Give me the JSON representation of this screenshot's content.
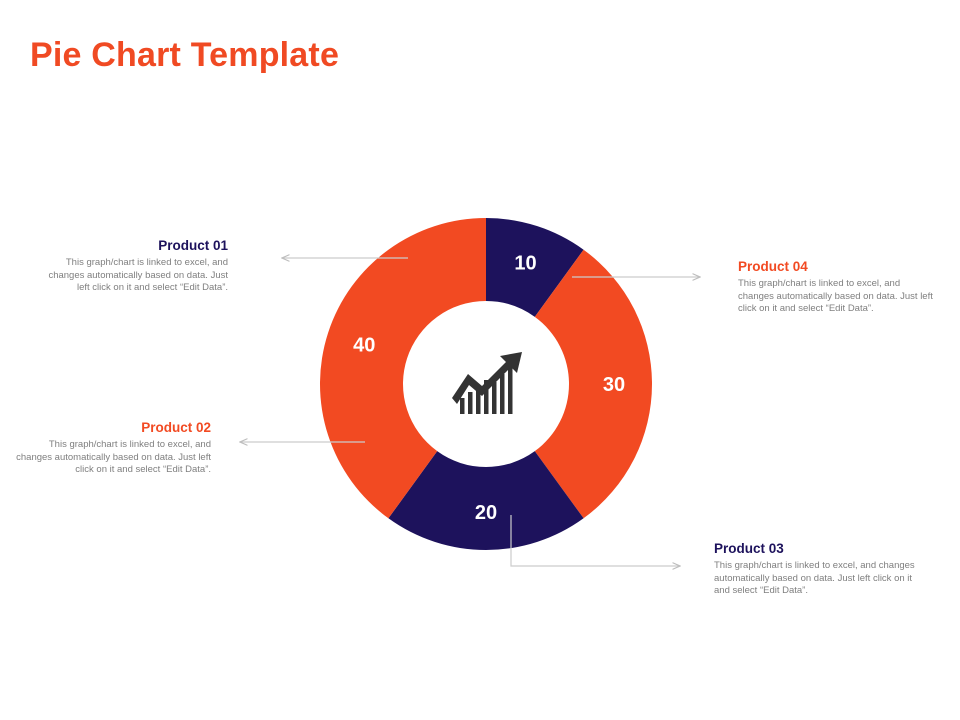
{
  "title": "Pie Chart Template",
  "colors": {
    "orange": "#f24a22",
    "navy": "#1d125c",
    "title": "#f04a23",
    "text": "#7f7f7f",
    "connector": "#cccccc"
  },
  "center_icon": "growth-chart-arrow-icon",
  "chart_data": {
    "type": "pie",
    "style": "donut",
    "title": "",
    "categories": [
      "Product 01",
      "Product 04",
      "Product 03",
      "Product 02"
    ],
    "values": [
      10,
      30,
      20,
      40
    ],
    "labels": [
      "10",
      "30",
      "20",
      "40"
    ],
    "slice_colors": [
      "#1d125c",
      "#f24a22",
      "#1d125c",
      "#f24a22"
    ]
  },
  "callouts": [
    {
      "id": "product-01",
      "heading": "Product 01",
      "heading_color": "#1d125c",
      "desc": "This graph/chart is linked to excel, and changes automatically based on data. Just left click on it and select “Edit Data”."
    },
    {
      "id": "product-02",
      "heading": "Product 02",
      "heading_color": "#f24a22",
      "desc": "This graph/chart is linked to excel, and changes automatically based on data. Just left click on it and select “Edit Data”."
    },
    {
      "id": "product-03",
      "heading": "Product 03",
      "heading_color": "#1d125c",
      "desc": "This graph/chart is linked to excel, and changes automatically based on data. Just left click on it and select “Edit Data”."
    },
    {
      "id": "product-04",
      "heading": "Product 04",
      "heading_color": "#f24a22",
      "desc": "This graph/chart is linked to excel, and changes automatically based on data. Just left click on it and select “Edit Data”."
    }
  ]
}
